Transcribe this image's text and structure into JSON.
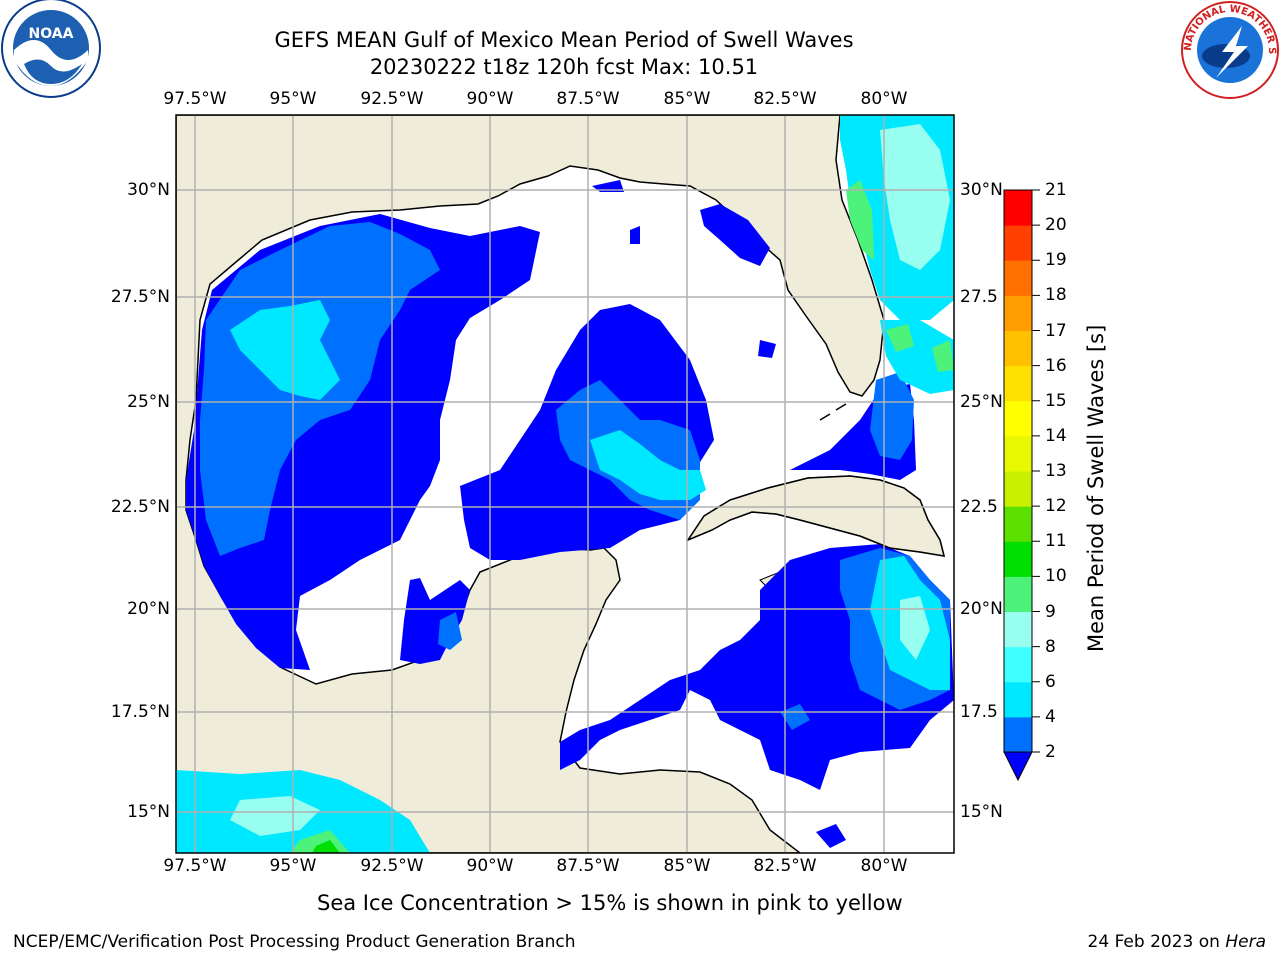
{
  "title": {
    "line1": "GEFS MEAN Gulf of Mexico Mean Period of Swell Waves",
    "line2": "20230222 t18z 120h fcst   Max: 10.51"
  },
  "map": {
    "lon_ticks": [
      "97.5°W",
      "95°W",
      "92.5°W",
      "90°W",
      "87.5°W",
      "85°W",
      "82.5°W",
      "80°W"
    ],
    "lat_ticks_left": [
      "30°N",
      "27.5°N",
      "25°N",
      "22.5°N",
      "20°N",
      "17.5°N",
      "15°N"
    ],
    "lat_ticks_right": [
      "30°N",
      "27.5",
      "25°N",
      "22.5",
      "20°N",
      "17.5",
      "15°N"
    ],
    "land_color": "#efedda",
    "grid_color": "#b0b0b0"
  },
  "colorbar": {
    "label": "Mean Period of Swell Waves [s]",
    "ticks": [
      "2",
      "4",
      "6",
      "8",
      "9",
      "10",
      "11",
      "12",
      "13",
      "14",
      "15",
      "16",
      "17",
      "18",
      "19",
      "20",
      "21"
    ],
    "colors": [
      "#0070ff",
      "#00e8ff",
      "#40ffff",
      "#98fff0",
      "#4cf27a",
      "#00e000",
      "#5ce000",
      "#c8f000",
      "#e8f800",
      "#ffff00",
      "#ffe000",
      "#ffc000",
      "#ff9c00",
      "#ff7000",
      "#ff4000",
      "#ff0000"
    ],
    "under_color": "#0000ff"
  },
  "note": "Sea Ice Concentration > 15% is shown in pink to yellow",
  "footer": {
    "left": "NCEP/EMC/Verification Post Processing Product Generation Branch",
    "right_date": "24 Feb 2023 on ",
    "right_host": "Hera"
  },
  "logos": {
    "noaa_text": "NOAA",
    "nws_text": "NATIONAL WEATHER SERVICE"
  }
}
